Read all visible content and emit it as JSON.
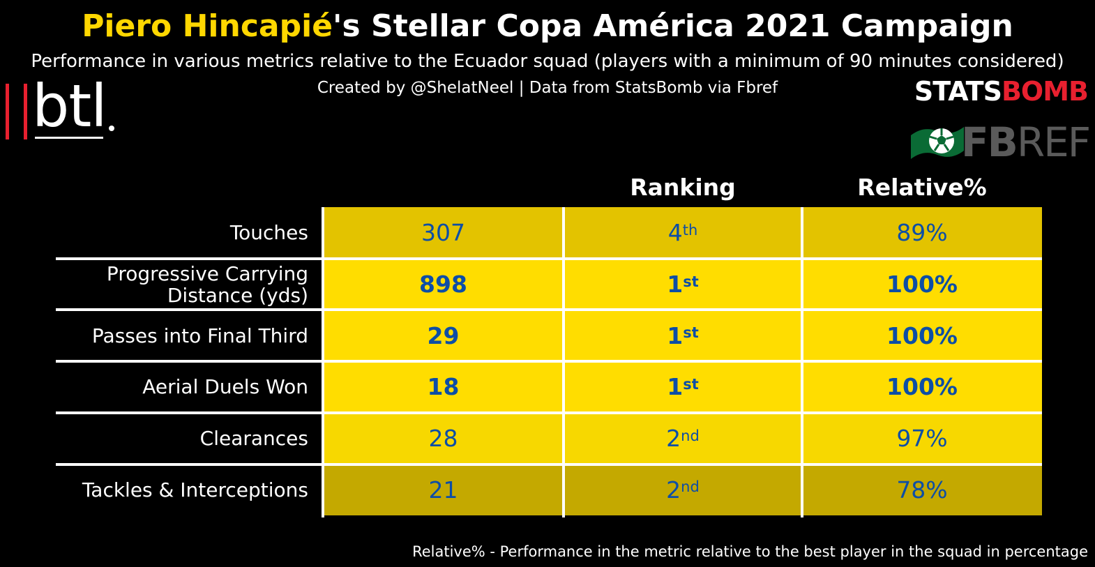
{
  "header": {
    "title_player": "Piero Hincapié",
    "title_rest": "'s Stellar Copa América 2021 Campaign",
    "subtitle": "Performance in various metrics relative to the Ecuador squad (players with a minimum of 90 minutes considered)",
    "credit": "Created by @ShelatNeel | Data from StatsBomb via Fbref"
  },
  "logos": {
    "btl": "btl",
    "statsbomb_white": "STATS",
    "statsbomb_red": "BOMB",
    "fbref_bold": "FB",
    "fbref_light": "REF"
  },
  "colors": {
    "background": "#000000",
    "highlight": "#ffd700",
    "value_text": "#0d4ea6",
    "brand_red": "#e8202f",
    "fbref_green": "#0a6b35"
  },
  "footnote": "Relative% - Performance in the metric relative to the best player in the squad in percentage",
  "chart_data": {
    "type": "table",
    "columns": [
      "",
      "Ranking",
      "Relative%"
    ],
    "rows": [
      {
        "metric": "Touches",
        "value": "307",
        "rank": "4",
        "rank_suffix": "th",
        "relative": "89%",
        "relative_value": 89,
        "best": false,
        "fill": "#e3c300"
      },
      {
        "metric": "Progressive Carrying Distance (yds)",
        "metric_lines": [
          "Progressive Carrying",
          "Distance (yds)"
        ],
        "value": "898",
        "rank": "1",
        "rank_suffix": "st",
        "relative": "100%",
        "relative_value": 100,
        "best": true,
        "fill": "#ffdd00"
      },
      {
        "metric": "Passes into Final Third",
        "value": "29",
        "rank": "1",
        "rank_suffix": "st",
        "relative": "100%",
        "relative_value": 100,
        "best": true,
        "fill": "#ffdd00"
      },
      {
        "metric": "Aerial Duels Won",
        "value": "18",
        "rank": "1",
        "rank_suffix": "st",
        "relative": "100%",
        "relative_value": 100,
        "best": true,
        "fill": "#ffdd00"
      },
      {
        "metric": "Clearances",
        "value": "28",
        "rank": "2",
        "rank_suffix": "nd",
        "relative": "97%",
        "relative_value": 97,
        "best": false,
        "fill": "#f7d800"
      },
      {
        "metric": "Tackles & Interceptions",
        "value": "21",
        "rank": "2",
        "rank_suffix": "nd",
        "relative": "78%",
        "relative_value": 78,
        "best": false,
        "fill": "#c4a900"
      }
    ]
  }
}
